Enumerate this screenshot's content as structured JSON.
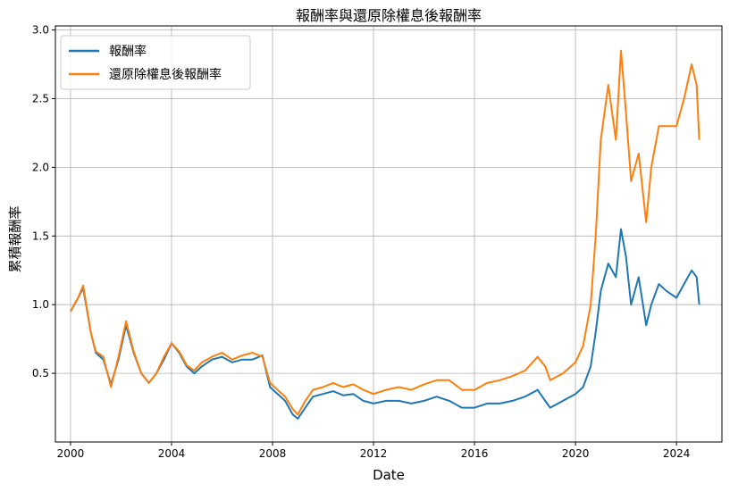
{
  "chart_data": {
    "type": "line",
    "title": "報酬率與還原除權息後報酬率",
    "xlabel": "Date",
    "ylabel": "累積報酬率",
    "x_range": [
      1999.4,
      2025.8
    ],
    "ylim": [
      0.0,
      3.03
    ],
    "x_ticks": [
      "2000",
      "2004",
      "2008",
      "2012",
      "2016",
      "2020",
      "2024"
    ],
    "y_ticks": [
      "0.5",
      "1.0",
      "1.5",
      "2.0",
      "2.5",
      "3.0"
    ],
    "grid": true,
    "legend_position": "upper-left",
    "series": [
      {
        "name": "報酬率",
        "color": "#1f77b4",
        "x": [
          2000.0,
          2000.3,
          2000.5,
          2000.8,
          2001.0,
          2001.3,
          2001.6,
          2001.9,
          2002.2,
          2002.5,
          2002.8,
          2003.1,
          2003.4,
          2003.7,
          2004.0,
          2004.3,
          2004.6,
          2004.9,
          2005.2,
          2005.6,
          2006.0,
          2006.4,
          2006.8,
          2007.2,
          2007.6,
          2007.9,
          2008.2,
          2008.5,
          2008.8,
          2009.0,
          2009.3,
          2009.6,
          2010.0,
          2010.4,
          2010.8,
          2011.2,
          2011.6,
          2012.0,
          2012.5,
          2013.0,
          2013.5,
          2014.0,
          2014.5,
          2015.0,
          2015.5,
          2016.0,
          2016.5,
          2017.0,
          2017.5,
          2018.0,
          2018.5,
          2018.8,
          2019.0,
          2019.5,
          2020.0,
          2020.3,
          2020.6,
          2020.8,
          2021.0,
          2021.3,
          2021.6,
          2021.8,
          2022.0,
          2022.2,
          2022.5,
          2022.8,
          2023.0,
          2023.3,
          2023.6,
          2024.0,
          2024.3,
          2024.6,
          2024.8,
          2024.9
        ],
        "values": [
          0.95,
          1.05,
          1.12,
          0.8,
          0.65,
          0.6,
          0.42,
          0.6,
          0.85,
          0.65,
          0.5,
          0.43,
          0.5,
          0.6,
          0.72,
          0.65,
          0.55,
          0.5,
          0.55,
          0.6,
          0.62,
          0.58,
          0.6,
          0.6,
          0.63,
          0.4,
          0.35,
          0.3,
          0.2,
          0.17,
          0.25,
          0.33,
          0.35,
          0.37,
          0.34,
          0.35,
          0.3,
          0.28,
          0.3,
          0.3,
          0.28,
          0.3,
          0.33,
          0.3,
          0.25,
          0.25,
          0.28,
          0.28,
          0.3,
          0.33,
          0.38,
          0.3,
          0.25,
          0.3,
          0.35,
          0.4,
          0.55,
          0.8,
          1.1,
          1.3,
          1.2,
          1.55,
          1.35,
          1.0,
          1.2,
          0.85,
          1.0,
          1.15,
          1.1,
          1.05,
          1.15,
          1.25,
          1.2,
          1.0
        ]
      },
      {
        "name": "還原除權息後報酬率",
        "color": "#ff7f0e",
        "x": [
          2000.0,
          2000.3,
          2000.5,
          2000.8,
          2001.0,
          2001.3,
          2001.6,
          2001.9,
          2002.2,
          2002.5,
          2002.8,
          2003.1,
          2003.4,
          2003.7,
          2004.0,
          2004.3,
          2004.6,
          2004.9,
          2005.2,
          2005.6,
          2006.0,
          2006.4,
          2006.8,
          2007.2,
          2007.6,
          2007.9,
          2008.2,
          2008.5,
          2008.8,
          2009.0,
          2009.3,
          2009.6,
          2010.0,
          2010.4,
          2010.8,
          2011.2,
          2011.6,
          2012.0,
          2012.5,
          2013.0,
          2013.5,
          2014.0,
          2014.5,
          2015.0,
          2015.5,
          2016.0,
          2016.5,
          2017.0,
          2017.5,
          2018.0,
          2018.5,
          2018.8,
          2019.0,
          2019.5,
          2020.0,
          2020.3,
          2020.6,
          2020.8,
          2021.0,
          2021.3,
          2021.6,
          2021.8,
          2022.0,
          2022.2,
          2022.5,
          2022.8,
          2023.0,
          2023.3,
          2023.6,
          2024.0,
          2024.3,
          2024.6,
          2024.8,
          2024.9
        ],
        "values": [
          0.95,
          1.05,
          1.14,
          0.8,
          0.66,
          0.62,
          0.4,
          0.62,
          0.88,
          0.66,
          0.5,
          0.43,
          0.5,
          0.62,
          0.72,
          0.66,
          0.56,
          0.52,
          0.58,
          0.62,
          0.65,
          0.6,
          0.63,
          0.65,
          0.62,
          0.43,
          0.38,
          0.33,
          0.24,
          0.2,
          0.3,
          0.38,
          0.4,
          0.43,
          0.4,
          0.42,
          0.38,
          0.35,
          0.38,
          0.4,
          0.38,
          0.42,
          0.45,
          0.45,
          0.38,
          0.38,
          0.43,
          0.45,
          0.48,
          0.52,
          0.62,
          0.55,
          0.45,
          0.5,
          0.58,
          0.7,
          1.0,
          1.5,
          2.2,
          2.6,
          2.2,
          2.85,
          2.4,
          1.9,
          2.1,
          1.6,
          2.0,
          2.3,
          2.3,
          2.3,
          2.5,
          2.75,
          2.6,
          2.2
        ]
      }
    ]
  }
}
